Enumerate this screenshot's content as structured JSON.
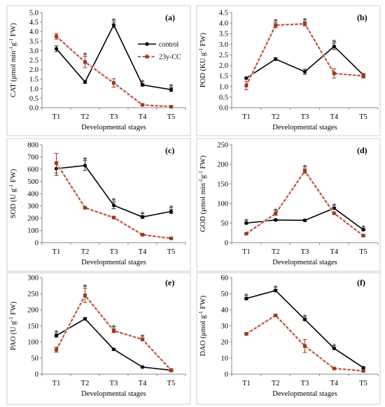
{
  "figure": {
    "xlabel": "Developmental stages",
    "colors": {
      "control": "#000000",
      "23y-CC": "#a0381a",
      "control_error": "#333333",
      "23y-CC_error": "#a0381a"
    }
  },
  "legend": {
    "items": [
      {
        "name": "control",
        "style": "solid",
        "marker": "circle"
      },
      {
        "name": "23y-CC",
        "style": "dashed",
        "marker": "square"
      }
    ],
    "placement": "panel-a-right"
  },
  "chart_data": [
    {
      "type": "line",
      "label": "(a)",
      "ylabel_parts": [
        "CAT (μmol min",
        "-1",
        "g",
        "-1",
        " FW)"
      ],
      "categories": [
        "T1",
        "T2",
        "T3",
        "T4",
        "T5"
      ],
      "ylim": [
        0,
        5
      ],
      "ytick_step": 0.5,
      "ytick_decimals": 1,
      "series": [
        {
          "name": "control",
          "values": [
            3.1,
            1.35,
            4.35,
            1.2,
            0.95
          ],
          "errors": [
            0.15,
            0.07,
            0.15,
            0.06,
            0.1
          ]
        },
        {
          "name": "23y-CC",
          "values": [
            3.75,
            2.4,
            1.3,
            0.15,
            0.05
          ],
          "errors": [
            0.15,
            0.3,
            0.22,
            0.03,
            0.02
          ]
        }
      ],
      "significant": [
        false,
        true,
        true,
        true,
        true
      ]
    },
    {
      "type": "line",
      "label": "(b)",
      "ylabel_parts": [
        "POD (KU g",
        "-1",
        " FW)"
      ],
      "categories": [
        "T1",
        "T2",
        "T3",
        "T4",
        "T5"
      ],
      "ylim": [
        0,
        4.5
      ],
      "ytick_step": 0.5,
      "ytick_decimals": 1,
      "series": [
        {
          "name": "control",
          "values": [
            1.4,
            2.3,
            1.7,
            2.9,
            1.55
          ],
          "errors": [
            0.05,
            0.06,
            0.12,
            0.15,
            0.06
          ]
        },
        {
          "name": "23y-CC",
          "values": [
            1.05,
            3.9,
            3.97,
            1.62,
            1.5
          ],
          "errors": [
            0.2,
            0.12,
            0.1,
            0.22,
            0.1
          ]
        }
      ],
      "significant": [
        false,
        true,
        true,
        true,
        false
      ]
    },
    {
      "type": "line",
      "label": "(c)",
      "ylabel_parts": [
        "SOD (U g",
        "-1",
        " FW)"
      ],
      "categories": [
        "T1",
        "T2",
        "T3",
        "T4",
        "T5"
      ],
      "ylim": [
        0,
        800
      ],
      "ytick_step": 100,
      "ytick_decimals": 0,
      "series": [
        {
          "name": "control",
          "values": [
            605,
            630,
            305,
            210,
            255
          ],
          "errors": [
            55,
            40,
            28,
            12,
            18
          ]
        },
        {
          "name": "23y-CC",
          "values": [
            650,
            285,
            205,
            65,
            35
          ],
          "errors": [
            80,
            8,
            8,
            5,
            5
          ]
        }
      ],
      "significant": [
        false,
        true,
        true,
        true,
        true
      ]
    },
    {
      "type": "line",
      "label": "(d)",
      "ylabel_parts": [
        "GOD (μmol min",
        "-1",
        "g",
        "-1",
        " FW)"
      ],
      "categories": [
        "T1",
        "T2",
        "T3",
        "T4",
        "T5"
      ],
      "ylim": [
        0,
        250
      ],
      "ytick_step": 50,
      "ytick_decimals": 0,
      "series": [
        {
          "name": "control",
          "values": [
            50,
            58,
            57,
            88,
            33
          ],
          "errors": [
            2,
            2,
            3,
            3,
            2
          ]
        },
        {
          "name": "23y-CC",
          "values": [
            23,
            74,
            183,
            75,
            18
          ],
          "errors": [
            2,
            4,
            6,
            3,
            2
          ]
        }
      ],
      "significant": [
        true,
        true,
        true,
        true,
        true
      ]
    },
    {
      "type": "line",
      "label": "(e)",
      "ylabel_parts": [
        "PAO (U g",
        "-1",
        " FW)"
      ],
      "categories": [
        "T1",
        "T2",
        "T3",
        "T4",
        "T5"
      ],
      "ylim": [
        0,
        300
      ],
      "ytick_step": 50,
      "ytick_decimals": 0,
      "series": [
        {
          "name": "control",
          "values": [
            120,
            172,
            77,
            22,
            12
          ],
          "errors": [
            5,
            4,
            3,
            2,
            2
          ]
        },
        {
          "name": "23y-CC",
          "values": [
            76,
            245,
            135,
            108,
            12
          ],
          "errors": [
            8,
            22,
            6,
            4,
            5
          ]
        }
      ],
      "significant": [
        true,
        true,
        true,
        true,
        false
      ]
    },
    {
      "type": "line",
      "label": "(f)",
      "ylabel_parts": [
        "DAO (μmol g",
        "-1",
        " FW)"
      ],
      "categories": [
        "T1",
        "T2",
        "T3",
        "T4",
        "T5"
      ],
      "ylim": [
        0,
        60
      ],
      "ytick_step": 10,
      "ytick_decimals": 0,
      "series": [
        {
          "name": "control",
          "values": [
            47,
            52,
            34,
            16,
            4
          ],
          "errors": [
            0.8,
            0.8,
            0.8,
            0.6,
            0.5
          ]
        },
        {
          "name": "23y-CC",
          "values": [
            25,
            36.5,
            17.5,
            3.5,
            2
          ],
          "errors": [
            0.6,
            0.8,
            4,
            0.5,
            0.4
          ]
        }
      ],
      "significant": [
        true,
        true,
        true,
        true,
        false
      ]
    }
  ]
}
